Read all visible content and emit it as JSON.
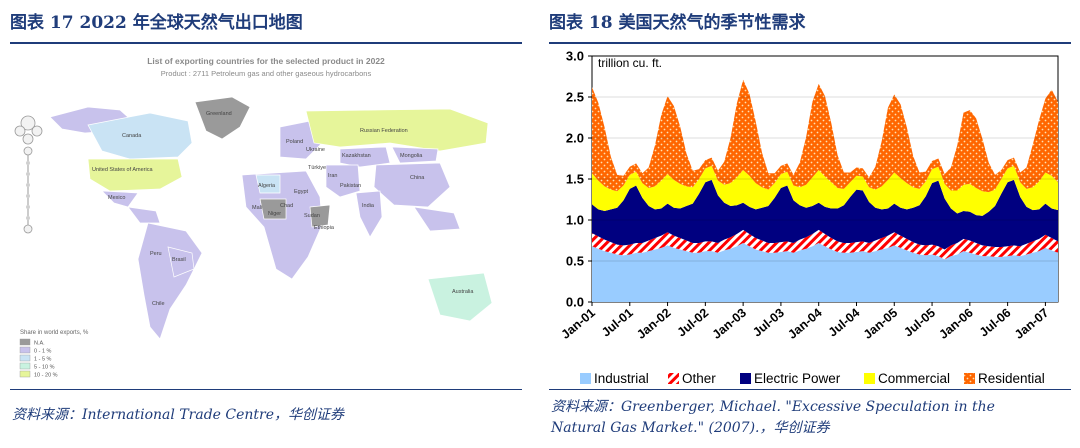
{
  "left": {
    "title": "图表 17  2022 年全球天然气出口地图",
    "map_title": "List of exporting countries for the selected product in 2022",
    "map_subtitle": "Product : 2711 Petroleum gas and other gaseous hydrocarbons",
    "country_labels": [
      "Greenland",
      "Canada",
      "United States of America",
      "Mexico",
      "Russian Federation",
      "Kazakhstan",
      "Mongolia",
      "China",
      "India",
      "Pakistan",
      "Türkiye",
      "Algeria",
      "Sudan",
      "Ethiopia",
      "Peru",
      "Brasil",
      "Chile",
      "Australia",
      "Mali",
      "Niger",
      "Chad",
      "Egypt",
      "Iran",
      "Ukraine",
      "Poland"
    ],
    "legend_title": "Share in world exports, %",
    "legend": [
      {
        "label": "N.A.",
        "color": "#9a9a9a"
      },
      {
        "label": "0 - 1 %",
        "color": "#c8c2ec"
      },
      {
        "label": "1 - 5 %",
        "color": "#c9e3f4"
      },
      {
        "label": "5 - 10 %",
        "color": "#c9f2e0"
      },
      {
        "label": "10 - 20 %",
        "color": "#e6f59a"
      }
    ],
    "source": "资料来源：International Trade Centre，华创证券"
  },
  "right": {
    "title": "图表 18  美国天然气的季节性需求",
    "source_line1": "资料来源：Greenberger, Michael. \"Excessive Speculation in the",
    "source_line2": "Natural Gas Market.\" (2007).，华创证券"
  },
  "chart_data": {
    "type": "area",
    "stacked": true,
    "ylabel": "trillion cu. ft.",
    "ylim": [
      0,
      3.0
    ],
    "yticks": [
      "0.0",
      "0.5",
      "1.0",
      "1.5",
      "2.0",
      "2.5",
      "3.0"
    ],
    "xtick_labels": [
      "Jan-01",
      "Jul-01",
      "Jan-02",
      "Jul-02",
      "Jan-03",
      "Jul-03",
      "Jan-04",
      "Jul-04",
      "Jan-05",
      "Jul-05",
      "Jan-06",
      "Jul-06",
      "Jan-07"
    ],
    "x_start": "2001-01",
    "x_end": "2007-03",
    "legend_position": "bottom",
    "series": [
      {
        "name": "Industrial",
        "color": "#99ccff",
        "values": [
          0.68,
          0.65,
          0.62,
          0.6,
          0.58,
          0.57,
          0.58,
          0.6,
          0.6,
          0.62,
          0.64,
          0.66,
          0.69,
          0.66,
          0.64,
          0.62,
          0.6,
          0.6,
          0.62,
          0.62,
          0.6,
          0.63,
          0.65,
          0.68,
          0.72,
          0.68,
          0.64,
          0.62,
          0.6,
          0.6,
          0.61,
          0.62,
          0.6,
          0.63,
          0.65,
          0.68,
          0.72,
          0.68,
          0.64,
          0.61,
          0.6,
          0.6,
          0.61,
          0.62,
          0.6,
          0.62,
          0.64,
          0.66,
          0.69,
          0.66,
          0.63,
          0.6,
          0.58,
          0.57,
          0.58,
          0.56,
          0.52,
          0.56,
          0.58,
          0.62,
          0.6,
          0.58,
          0.56,
          0.56,
          0.55,
          0.55,
          0.56,
          0.57,
          0.56,
          0.58,
          0.6,
          0.62,
          0.66,
          0.63,
          0.6
        ]
      },
      {
        "name": "Other",
        "color": "#ff0000",
        "values": [
          0.16,
          0.15,
          0.14,
          0.13,
          0.12,
          0.12,
          0.12,
          0.12,
          0.12,
          0.13,
          0.14,
          0.15,
          0.16,
          0.15,
          0.14,
          0.13,
          0.12,
          0.12,
          0.12,
          0.12,
          0.12,
          0.13,
          0.14,
          0.15,
          0.16,
          0.15,
          0.14,
          0.13,
          0.12,
          0.12,
          0.12,
          0.12,
          0.12,
          0.13,
          0.14,
          0.15,
          0.16,
          0.15,
          0.14,
          0.13,
          0.12,
          0.12,
          0.12,
          0.12,
          0.12,
          0.13,
          0.14,
          0.15,
          0.16,
          0.15,
          0.14,
          0.13,
          0.12,
          0.12,
          0.12,
          0.12,
          0.12,
          0.13,
          0.14,
          0.15,
          0.15,
          0.14,
          0.13,
          0.12,
          0.12,
          0.12,
          0.12,
          0.12,
          0.12,
          0.13,
          0.14,
          0.15,
          0.16,
          0.15,
          0.14
        ]
      },
      {
        "name": "Electric Power",
        "color": "#000080",
        "values": [
          0.35,
          0.33,
          0.35,
          0.4,
          0.45,
          0.55,
          0.68,
          0.7,
          0.55,
          0.42,
          0.35,
          0.33,
          0.35,
          0.34,
          0.36,
          0.42,
          0.48,
          0.6,
          0.72,
          0.75,
          0.58,
          0.45,
          0.38,
          0.35,
          0.33,
          0.33,
          0.35,
          0.4,
          0.45,
          0.55,
          0.66,
          0.68,
          0.52,
          0.42,
          0.36,
          0.34,
          0.33,
          0.33,
          0.36,
          0.4,
          0.46,
          0.56,
          0.64,
          0.62,
          0.5,
          0.4,
          0.35,
          0.33,
          0.35,
          0.34,
          0.36,
          0.42,
          0.48,
          0.6,
          0.75,
          0.8,
          0.62,
          0.45,
          0.36,
          0.34,
          0.35,
          0.34,
          0.36,
          0.42,
          0.5,
          0.65,
          0.78,
          0.8,
          0.6,
          0.45,
          0.38,
          0.36,
          0.38,
          0.36,
          0.38
        ]
      },
      {
        "name": "Commercial",
        "color": "#ffff00",
        "values": [
          0.38,
          0.35,
          0.3,
          0.24,
          0.2,
          0.18,
          0.17,
          0.17,
          0.18,
          0.22,
          0.28,
          0.34,
          0.36,
          0.34,
          0.3,
          0.24,
          0.2,
          0.18,
          0.17,
          0.17,
          0.18,
          0.22,
          0.28,
          0.34,
          0.4,
          0.38,
          0.32,
          0.25,
          0.2,
          0.18,
          0.17,
          0.17,
          0.18,
          0.22,
          0.28,
          0.35,
          0.4,
          0.37,
          0.32,
          0.25,
          0.2,
          0.18,
          0.17,
          0.17,
          0.18,
          0.22,
          0.28,
          0.35,
          0.38,
          0.36,
          0.32,
          0.25,
          0.2,
          0.18,
          0.17,
          0.17,
          0.18,
          0.22,
          0.28,
          0.32,
          0.34,
          0.33,
          0.3,
          0.24,
          0.2,
          0.18,
          0.17,
          0.17,
          0.18,
          0.22,
          0.28,
          0.34,
          0.38,
          0.4,
          0.34
        ]
      },
      {
        "name": "Residential",
        "color": "#ff6600",
        "values": [
          1.05,
          0.95,
          0.72,
          0.4,
          0.2,
          0.12,
          0.1,
          0.1,
          0.12,
          0.25,
          0.5,
          0.8,
          0.95,
          0.9,
          0.7,
          0.4,
          0.2,
          0.12,
          0.1,
          0.1,
          0.12,
          0.28,
          0.55,
          0.9,
          1.1,
          1.0,
          0.75,
          0.42,
          0.2,
          0.12,
          0.1,
          0.1,
          0.13,
          0.3,
          0.58,
          0.92,
          1.05,
          0.98,
          0.72,
          0.4,
          0.2,
          0.12,
          0.1,
          0.1,
          0.12,
          0.28,
          0.55,
          0.88,
          0.95,
          0.9,
          0.68,
          0.38,
          0.2,
          0.12,
          0.1,
          0.1,
          0.12,
          0.28,
          0.55,
          0.88,
          0.9,
          0.85,
          0.64,
          0.36,
          0.18,
          0.11,
          0.1,
          0.1,
          0.12,
          0.26,
          0.52,
          0.75,
          0.9,
          1.05,
          0.98
        ]
      }
    ]
  }
}
